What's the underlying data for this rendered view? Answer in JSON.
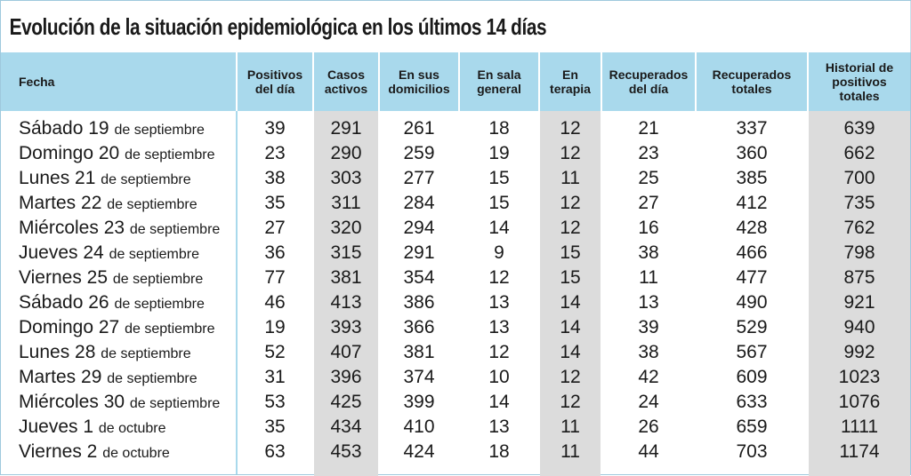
{
  "title": "Evolución de la situación epidemiológica en los últimos 14 días",
  "headers": {
    "fecha": "Fecha",
    "positivos": "Positivos\ndel día",
    "activos": "Casos\nactivos",
    "domicilios": "En sus\ndomicilios",
    "sala": "En sala\ngeneral",
    "terapia": "En\nterapia",
    "recuperados_dia": "Recuperados\ndel día",
    "recuperados_totales": "Recuperados\ntotales",
    "historial": "Historial de\npositivos\ntotales"
  },
  "rows": [
    {
      "day": "Sábado 19",
      "month": "de septiembre",
      "positivos": "39",
      "activos": "291",
      "domicilios": "261",
      "sala": "18",
      "terapia": "12",
      "rec_dia": "21",
      "rec_tot": "337",
      "historial": "639"
    },
    {
      "day": "Domingo 20",
      "month": "de septiembre",
      "positivos": "23",
      "activos": "290",
      "domicilios": "259",
      "sala": "19",
      "terapia": "12",
      "rec_dia": "23",
      "rec_tot": "360",
      "historial": "662"
    },
    {
      "day": "Lunes 21",
      "month": "de septiembre",
      "positivos": "38",
      "activos": "303",
      "domicilios": "277",
      "sala": "15",
      "terapia": "11",
      "rec_dia": "25",
      "rec_tot": "385",
      "historial": "700"
    },
    {
      "day": "Martes 22",
      "month": "de septiembre",
      "positivos": "35",
      "activos": "311",
      "domicilios": "284",
      "sala": "15",
      "terapia": "12",
      "rec_dia": "27",
      "rec_tot": "412",
      "historial": "735"
    },
    {
      "day": "Miércoles 23",
      "month": "de septiembre",
      "positivos": "27",
      "activos": "320",
      "domicilios": "294",
      "sala": "14",
      "terapia": "12",
      "rec_dia": "16",
      "rec_tot": "428",
      "historial": "762"
    },
    {
      "day": "Jueves 24",
      "month": "de septiembre",
      "positivos": "36",
      "activos": "315",
      "domicilios": "291",
      "sala": "9",
      "terapia": "15",
      "rec_dia": "38",
      "rec_tot": "466",
      "historial": "798"
    },
    {
      "day": "Viernes 25",
      "month": "de septiembre",
      "positivos": "77",
      "activos": "381",
      "domicilios": "354",
      "sala": "12",
      "terapia": "15",
      "rec_dia": "11",
      "rec_tot": "477",
      "historial": "875"
    },
    {
      "day": "Sábado 26",
      "month": "de septiembre",
      "positivos": "46",
      "activos": "413",
      "domicilios": "386",
      "sala": "13",
      "terapia": "14",
      "rec_dia": "13",
      "rec_tot": "490",
      "historial": "921"
    },
    {
      "day": "Domingo 27",
      "month": "de septiembre",
      "positivos": "19",
      "activos": "393",
      "domicilios": "366",
      "sala": "13",
      "terapia": "14",
      "rec_dia": "39",
      "rec_tot": "529",
      "historial": "940"
    },
    {
      "day": "Lunes 28",
      "month": "de septiembre",
      "positivos": "52",
      "activos": "407",
      "domicilios": "381",
      "sala": "12",
      "terapia": "14",
      "rec_dia": "38",
      "rec_tot": "567",
      "historial": "992"
    },
    {
      "day": "Martes 29",
      "month": "de septiembre",
      "positivos": "31",
      "activos": "396",
      "domicilios": "374",
      "sala": "10",
      "terapia": "12",
      "rec_dia": "42",
      "rec_tot": "609",
      "historial": "1023"
    },
    {
      "day": "Miércoles 30",
      "month": "de septiembre",
      "positivos": "53",
      "activos": "425",
      "domicilios": "399",
      "sala": "14",
      "terapia": "12",
      "rec_dia": "24",
      "rec_tot": "633",
      "historial": "1076"
    },
    {
      "day": "Jueves 1",
      "month": "de octubre",
      "positivos": "35",
      "activos": "434",
      "domicilios": "410",
      "sala": "13",
      "terapia": "11",
      "rec_dia": "26",
      "rec_tot": "659",
      "historial": "1111"
    },
    {
      "day": "Viernes 2",
      "month": "de octubre",
      "positivos": "63",
      "activos": "453",
      "domicilios": "424",
      "sala": "18",
      "terapia": "11",
      "rec_dia": "44",
      "rec_tot": "703",
      "historial": "1174"
    }
  ]
}
